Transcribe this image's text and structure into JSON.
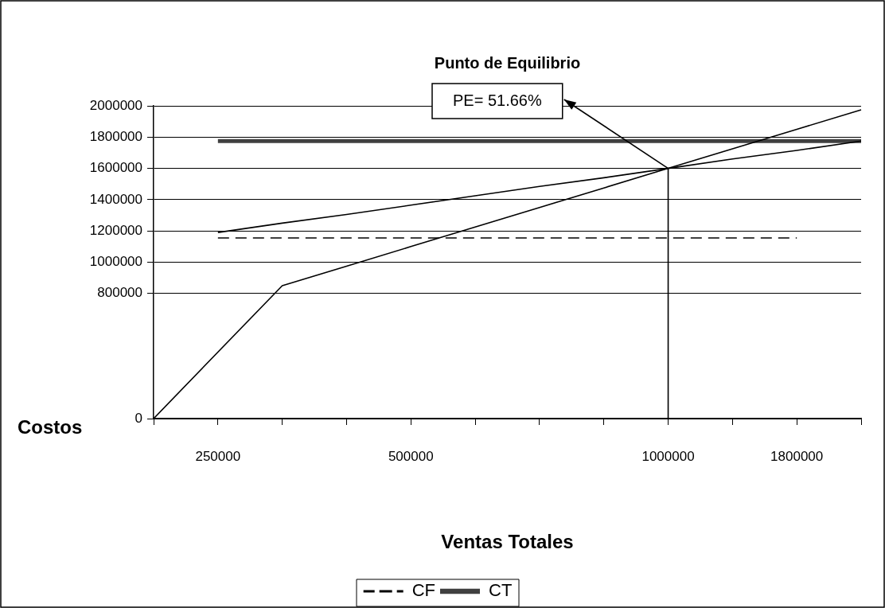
{
  "chart_data": {
    "type": "line",
    "title": "Punto de Equilibrio",
    "xlabel": "Ventas Totales",
    "ylabel": "Costos",
    "categories": [
      null,
      "250000",
      null,
      null,
      "500000",
      null,
      null,
      null,
      "1000000",
      null,
      "1800000",
      null
    ],
    "ylim": [
      0,
      2000000
    ],
    "yticks": [
      0,
      800000,
      1000000,
      1200000,
      1400000,
      1600000,
      1800000,
      2000000
    ],
    "series": [
      {
        "color": "#000000",
        "values": [
          0,
          null,
          850000,
          975000,
          1100000,
          1225000,
          1350000,
          1475000,
          1600000,
          1725000,
          1850000,
          1975000
        ]
      },
      {
        "color": "#000000",
        "values": [
          null,
          1190000,
          1250000,
          1305000,
          1365000,
          1425000,
          1485000,
          1540000,
          1600000,
          1660000,
          1715000,
          1775000
        ]
      },
      {
        "name": "CF",
        "color": "#000000",
        "line_style": "dashed",
        "values": [
          null,
          1155000,
          1155000,
          1155000,
          1155000,
          1155000,
          1155000,
          1155000,
          1155000,
          1155000,
          1155000,
          null
        ]
      },
      {
        "name": "CT",
        "color": "#404040",
        "values": [
          null,
          1775000,
          1775000,
          1775000,
          1775000,
          1775000,
          1775000,
          1775000,
          1775000,
          1775000,
          1775000,
          1775000
        ]
      },
      {
        "color": "#000000",
        "x": [
          "1000000",
          "1000000"
        ],
        "values": [
          0,
          1600000
        ]
      }
    ],
    "annotations": [
      "PE= 51.66%"
    ],
    "grid": "y",
    "legend": "bottom",
    "marker": "none"
  }
}
